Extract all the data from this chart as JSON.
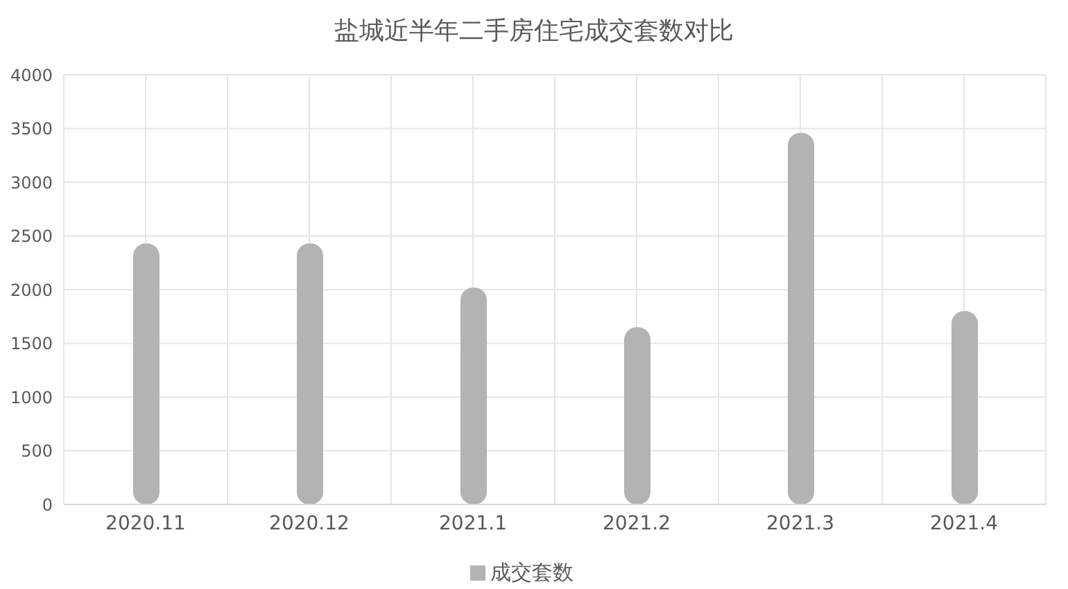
{
  "chart_data": {
    "type": "bar",
    "title": "盐城近半年二手房住宅成交套数对比",
    "categories": [
      "2020.11",
      "2020.12",
      "2021.1",
      "2021.2",
      "2021.3",
      "2021.4"
    ],
    "series": [
      {
        "name": "成交套数",
        "color": "#b3b3b3",
        "values": [
          2430,
          2430,
          2020,
          1650,
          3460,
          1800
        ]
      }
    ],
    "ylim": [
      0,
      4000
    ],
    "yticks": [
      0,
      500,
      1000,
      1500,
      2000,
      2500,
      3000,
      3500,
      4000
    ],
    "grid": true,
    "legend": "bottom"
  }
}
